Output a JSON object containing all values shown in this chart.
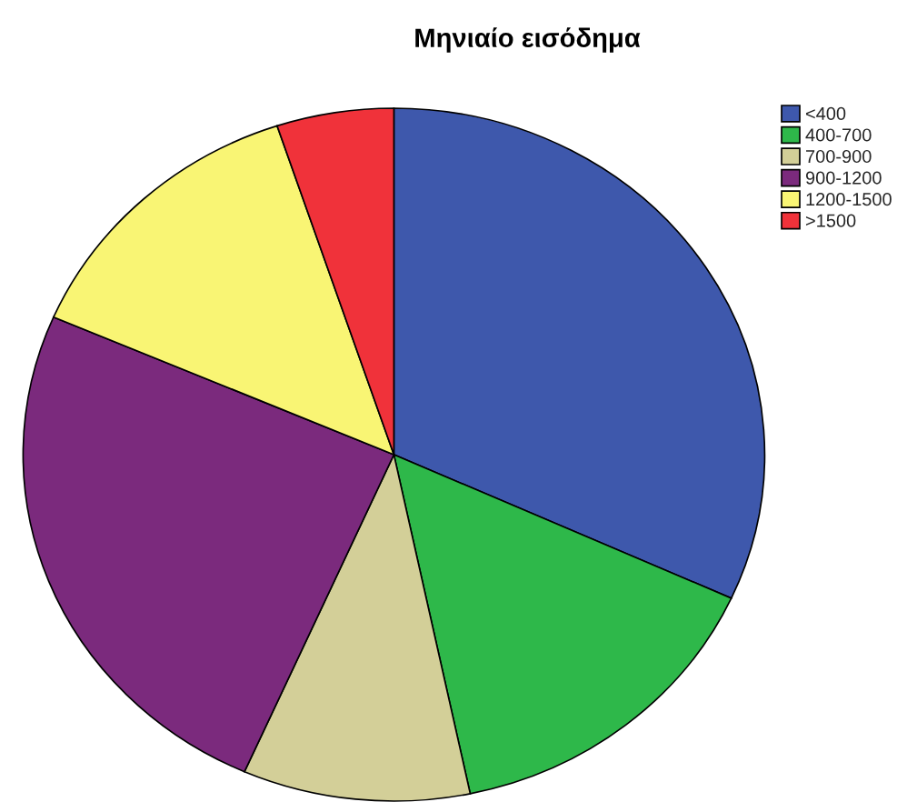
{
  "chart_data": {
    "type": "pie",
    "title": "Μηνιαίο εισόδημα",
    "categories": [
      "<400",
      "400-700",
      "700-900",
      "900-1200",
      "1200-1500",
      ">1500"
    ],
    "values": [
      31.8,
      14.9,
      9.9,
      24.9,
      13.4,
      5.1
    ],
    "colors": [
      "#3e58ac",
      "#2eb84a",
      "#d3cf98",
      "#7b2a7d",
      "#f9f574",
      "#f0323a"
    ],
    "legend": "top right"
  }
}
